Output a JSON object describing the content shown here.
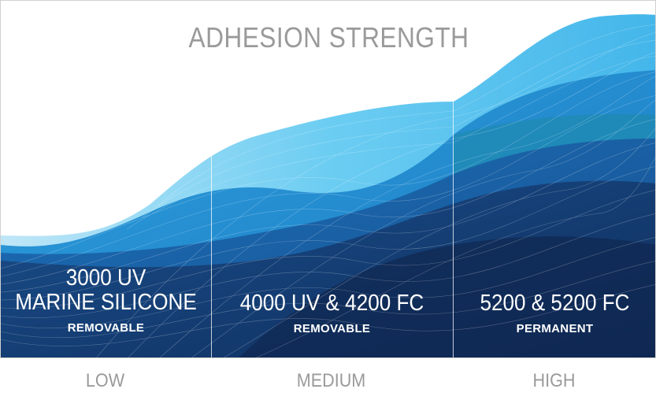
{
  "title": "ADHESION STRENGTH",
  "zones": [
    {
      "product": "3000 UV\nMARINE SILICONE",
      "type": "REMOVABLE"
    },
    {
      "product": "4000 UV & 4200 FC",
      "type": "REMOVABLE"
    },
    {
      "product": "5200 & 5200 FC",
      "type": "PERMANENT"
    }
  ],
  "levels": [
    "LOW",
    "MEDIUM",
    "HIGH"
  ],
  "colors": {
    "light_blue": "#5cc4ef",
    "mid_blue": "#1f82c8",
    "dark_navy": "#14356a",
    "label_gray": "#9a9a9a"
  }
}
